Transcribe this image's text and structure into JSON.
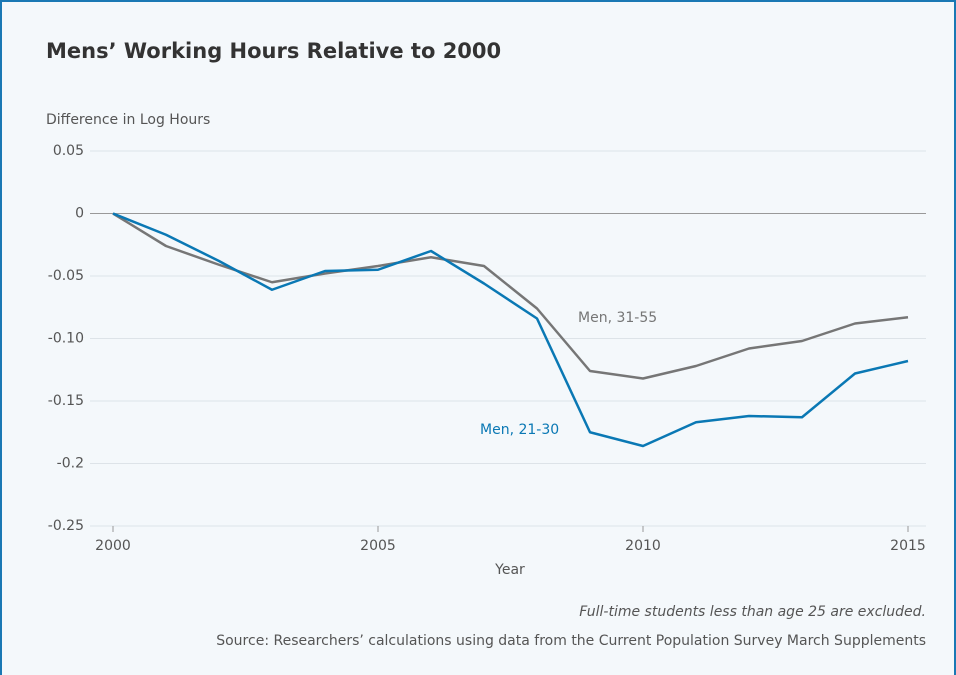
{
  "chart_data": {
    "type": "line",
    "title": "Mens’ Working Hours Relative to 2000",
    "y_label": "Difference in Log Hours",
    "x_label": "Year",
    "note": "Full-time students less than age 25 are excluded.",
    "source": "Source: Researchers’ calculations using data from the Current Population Survey March Supplements",
    "x": [
      2000,
      2001,
      2002,
      2003,
      2004,
      2005,
      2006,
      2007,
      2008,
      2009,
      2010,
      2011,
      2012,
      2013,
      2014,
      2015
    ],
    "series": [
      {
        "name": "Men, 31-55",
        "color": "#767676",
        "values": [
          0,
          -0.026,
          -0.041,
          -0.055,
          -0.048,
          -0.042,
          -0.035,
          -0.042,
          -0.076,
          -0.126,
          -0.132,
          -0.122,
          -0.108,
          -0.102,
          -0.088,
          -0.083
        ]
      },
      {
        "name": "Men, 21-30",
        "color": "#0a78b4",
        "values": [
          0,
          -0.017,
          -0.038,
          -0.061,
          -0.046,
          -0.045,
          -0.03,
          -0.056,
          -0.084,
          -0.175,
          -0.186,
          -0.167,
          -0.162,
          -0.163,
          -0.128,
          -0.118
        ]
      }
    ],
    "xlim": [
      2000,
      2015
    ],
    "xticks": [
      2000,
      2005,
      2010,
      2015
    ],
    "ylim": [
      -0.25,
      0.05
    ],
    "yticks": [
      0.05,
      0,
      -0.05,
      {
        "value": -0.1,
        "label": "-0.10"
      },
      -0.15,
      -0.2,
      -0.25
    ],
    "grid": true
  }
}
